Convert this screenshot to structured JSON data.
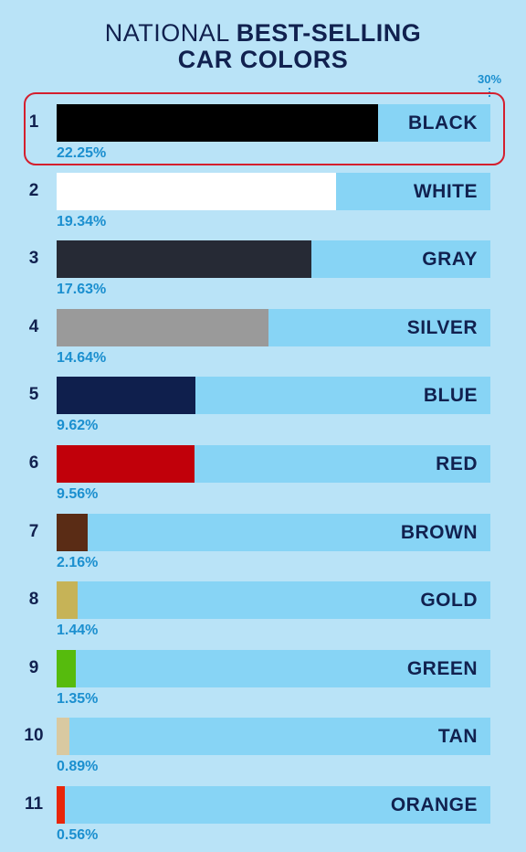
{
  "title": {
    "light": "NATIONAL",
    "bold": "BEST-SELLING",
    "line2": "CAR COLORS"
  },
  "chart_data": {
    "type": "bar",
    "orientation": "horizontal",
    "max_label": "30%",
    "xlim": [
      0,
      30
    ],
    "highlighted_rank": 1,
    "rows": [
      {
        "rank": "1",
        "name": "BLACK",
        "value": 22.25,
        "label": "22.25%",
        "color": "#000000"
      },
      {
        "rank": "2",
        "name": "WHITE",
        "value": 19.34,
        "label": "19.34%",
        "color": "#ffffff"
      },
      {
        "rank": "3",
        "name": "GRAY",
        "value": 17.63,
        "label": "17.63%",
        "color": "#262a35"
      },
      {
        "rank": "4",
        "name": "SILVER",
        "value": 14.64,
        "label": "14.64%",
        "color": "#9a9a9a"
      },
      {
        "rank": "5",
        "name": "BLUE",
        "value": 9.62,
        "label": "9.62%",
        "color": "#0f1f4d"
      },
      {
        "rank": "6",
        "name": "RED",
        "value": 9.56,
        "label": "9.56%",
        "color": "#c1000a"
      },
      {
        "rank": "7",
        "name": "BROWN",
        "value": 2.16,
        "label": "2.16%",
        "color": "#5a2c15"
      },
      {
        "rank": "8",
        "name": "GOLD",
        "value": 1.44,
        "label": "1.44%",
        "color": "#c6b357"
      },
      {
        "rank": "9",
        "name": "GREEN",
        "value": 1.35,
        "label": "1.35%",
        "color": "#56bb0d"
      },
      {
        "rank": "10",
        "name": "TAN",
        "value": 0.89,
        "label": "0.89%",
        "color": "#d9c9a1"
      },
      {
        "rank": "11",
        "name": "ORANGE",
        "value": 0.56,
        "label": "0.56%",
        "color": "#e8260a"
      }
    ]
  }
}
